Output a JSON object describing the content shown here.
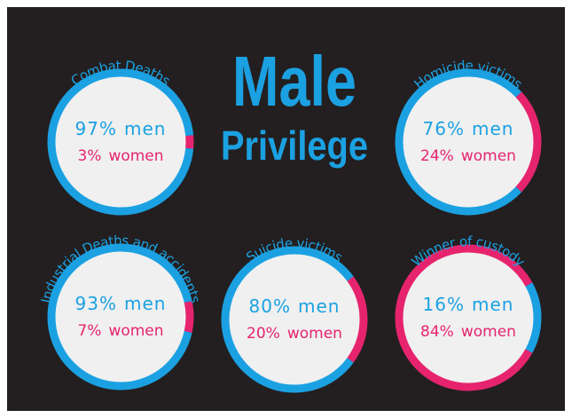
{
  "title": {
    "line1": "Male",
    "line2": "Privilege"
  },
  "chart_data": [
    {
      "type": "pie",
      "title": "Combat Deaths",
      "categories": [
        "men",
        "women"
      ],
      "values": [
        97,
        3
      ],
      "value_labels": [
        "97%",
        "3%"
      ],
      "colors": [
        "#1ba1e2",
        "#e6246e"
      ]
    },
    {
      "type": "pie",
      "title": "Homicide victims",
      "categories": [
        "men",
        "women"
      ],
      "values": [
        76,
        24
      ],
      "value_labels": [
        "76%",
        "24%"
      ],
      "colors": [
        "#1ba1e2",
        "#e6246e"
      ]
    },
    {
      "type": "pie",
      "title": "Industrial Deaths and accidents",
      "categories": [
        "men",
        "women"
      ],
      "values": [
        93,
        7
      ],
      "value_labels": [
        "93%",
        "7%"
      ],
      "colors": [
        "#1ba1e2",
        "#e6246e"
      ]
    },
    {
      "type": "pie",
      "title": "Suicide victims",
      "categories": [
        "men",
        "women"
      ],
      "values": [
        80,
        20
      ],
      "value_labels": [
        "80%",
        "20%"
      ],
      "colors": [
        "#1ba1e2",
        "#e6246e"
      ]
    },
    {
      "type": "pie",
      "title": "Winner of custody",
      "categories": [
        "men",
        "women"
      ],
      "values": [
        16,
        84
      ],
      "value_labels": [
        "16%",
        "84%"
      ],
      "colors": [
        "#1ba1e2",
        "#e6246e"
      ]
    }
  ]
}
